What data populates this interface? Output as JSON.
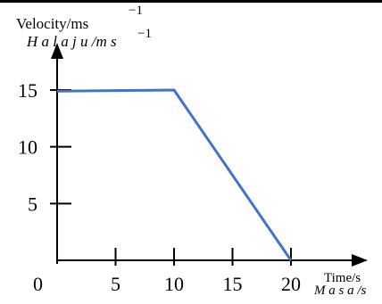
{
  "chart_data": {
    "type": "line",
    "y_label_line1": "Velocity/ms",
    "y_label_line1_exp": "−1",
    "y_label_line2": "H a l a j u /m s",
    "y_label_line2_exp": "−1",
    "x_label_line1": "Time/s",
    "x_label_line2": "M a s a /s",
    "origin_label": "0",
    "x_ticks": [
      "5",
      "10",
      "15",
      "20"
    ],
    "y_ticks": [
      "5",
      "10",
      "15"
    ],
    "xlim": [
      0,
      20
    ],
    "ylim": [
      0,
      15
    ],
    "series": [
      {
        "color": "#4472C4",
        "x": [
          0,
          10,
          20
        ],
        "y": [
          14.9,
          15,
          0
        ]
      }
    ],
    "grid": false
  }
}
